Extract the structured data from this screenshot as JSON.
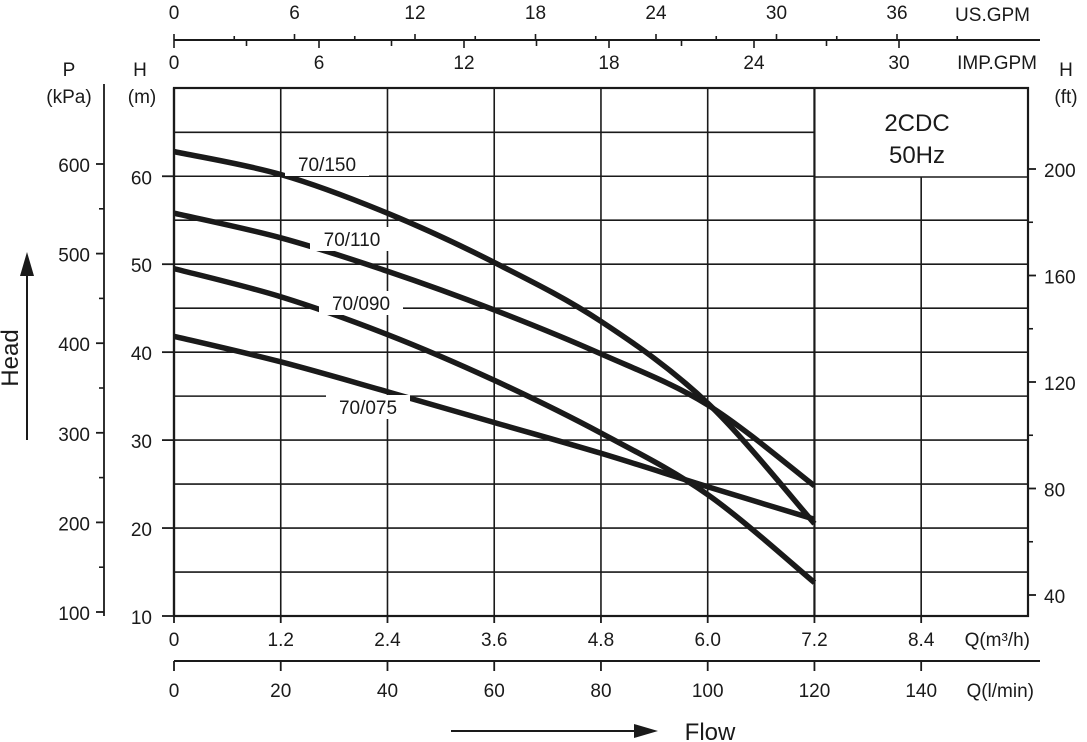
{
  "chart_data": {
    "type": "line",
    "model_label": [
      "2CDC",
      "50Hz"
    ],
    "x": [
      0,
      20,
      40,
      60,
      80,
      100,
      120
    ],
    "xlabel": "Flow",
    "ylabel": "Head",
    "xlim": [
      0,
      155
    ],
    "ylim": [
      10,
      68
    ],
    "grid": true,
    "series": [
      {
        "name": "70/150",
        "x": [
          0,
          20,
          40,
          60,
          80,
          100,
          120
        ],
        "values": [
          62.8,
          60.2,
          55.8,
          50.2,
          43.5,
          34.2,
          20.5
        ]
      },
      {
        "name": "70/110",
        "x": [
          0,
          20,
          40,
          60,
          80,
          100,
          120
        ],
        "values": [
          55.8,
          53.0,
          49.2,
          44.8,
          39.8,
          34.0,
          24.8
        ]
      },
      {
        "name": "70/090",
        "x": [
          0,
          20,
          40,
          60,
          80,
          100,
          120
        ],
        "values": [
          49.5,
          46.3,
          42.0,
          36.8,
          30.8,
          23.8,
          13.8
        ]
      },
      {
        "name": "70/075",
        "x": [
          0,
          20,
          40,
          60,
          80,
          100,
          120
        ],
        "values": [
          41.8,
          38.9,
          35.5,
          32.0,
          28.5,
          24.7,
          21.0
        ]
      }
    ],
    "axes": {
      "bottom_inner": {
        "unit": "Q(m³/h)",
        "ticks": [
          "0",
          "1.2",
          "2.4",
          "3.6",
          "4.8",
          "6.0",
          "7.2",
          "8.4"
        ]
      },
      "bottom_outer": {
        "unit": "Q(l/min)",
        "ticks": [
          "0",
          "20",
          "40",
          "60",
          "80",
          "100",
          "120",
          "140"
        ]
      },
      "top_us": {
        "unit": "US.GPM",
        "ticks": [
          "0",
          "6",
          "12",
          "18",
          "24",
          "30",
          "36"
        ]
      },
      "top_imp": {
        "unit": "IMP.GPM",
        "ticks": [
          "0",
          "6",
          "12",
          "18",
          "24",
          "30"
        ]
      },
      "left_h": {
        "title": "H",
        "unit": "(m)",
        "ticks": [
          "10",
          "20",
          "30",
          "40",
          "50",
          "60"
        ]
      },
      "left_p": {
        "title": "P",
        "unit": "(kPa)",
        "ticks": [
          "100",
          "200",
          "300",
          "400",
          "500",
          "600"
        ]
      },
      "right_ft": {
        "title": "H",
        "unit": "(ft)",
        "ticks": [
          "40",
          "80",
          "120",
          "160",
          "200"
        ]
      }
    }
  }
}
